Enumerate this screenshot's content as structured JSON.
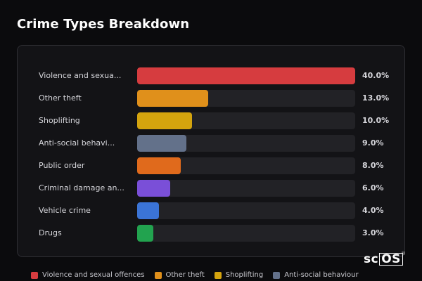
{
  "title": "Crime Types Breakdown",
  "brand": {
    "prefix": "sc",
    "boxed": "OS",
    "mark": "®"
  },
  "chart_data": {
    "type": "bar",
    "orientation": "horizontal",
    "title": "Crime Types Breakdown",
    "xlim": [
      0,
      40
    ],
    "grid": false,
    "legend_position": "bottom",
    "categories": [
      "Violence and sexua...",
      "Other theft",
      "Shoplifting",
      "Anti-social behavi...",
      "Public order",
      "Criminal damage an...",
      "Vehicle crime",
      "Drugs"
    ],
    "values": [
      40.0,
      13.0,
      10.0,
      9.0,
      8.0,
      6.0,
      4.0,
      3.0
    ],
    "value_labels": [
      "40.0%",
      "13.0%",
      "10.0%",
      "9.0%",
      "8.0%",
      "6.0%",
      "4.0%",
      "3.0%"
    ],
    "colors": [
      "#d63c3f",
      "#e0901b",
      "#d4a40e",
      "#63718a",
      "#e06a1c",
      "#7a4fd8",
      "#3b74d6",
      "#22a34f"
    ],
    "legend": [
      {
        "label": "Violence and sexual offences",
        "color": "#d63c3f"
      },
      {
        "label": "Other theft",
        "color": "#e0901b"
      },
      {
        "label": "Shoplifting",
        "color": "#d4a40e"
      },
      {
        "label": "Anti-social behaviour",
        "color": "#63718a"
      }
    ]
  }
}
